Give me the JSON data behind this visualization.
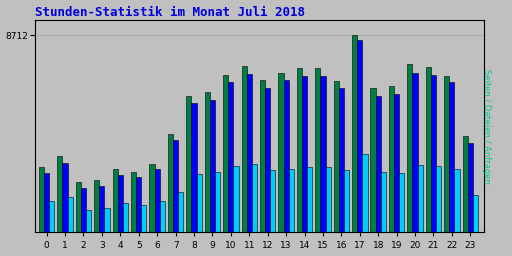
{
  "title": "Stunden-Statistik im Monat Juli 2018",
  "title_color": "#0000DD",
  "title_fontsize": 9,
  "ylabel_right": "Seiten / Dateien / Anfragen",
  "ytick_label": "8712",
  "background_color": "#C0C0C0",
  "plot_bg_color": "#C0C0C0",
  "bar_width": 0.28,
  "hours": [
    0,
    1,
    2,
    3,
    4,
    5,
    6,
    7,
    8,
    9,
    10,
    11,
    12,
    13,
    14,
    15,
    16,
    17,
    18,
    19,
    20,
    21,
    22,
    23
  ],
  "seiten": [
    330,
    390,
    255,
    265,
    320,
    305,
    345,
    500,
    695,
    715,
    800,
    845,
    775,
    810,
    835,
    835,
    770,
    1000,
    735,
    745,
    855,
    840,
    795,
    490
  ],
  "dateien": [
    300,
    355,
    225,
    238,
    292,
    280,
    320,
    470,
    655,
    672,
    762,
    805,
    735,
    773,
    795,
    795,
    732,
    975,
    692,
    702,
    812,
    800,
    762,
    455
  ],
  "anfragen": [
    158,
    178,
    112,
    122,
    148,
    138,
    158,
    205,
    295,
    305,
    338,
    345,
    315,
    320,
    330,
    330,
    315,
    400,
    305,
    300,
    340,
    335,
    320,
    190
  ],
  "color_seiten": "#008040",
  "color_dateien": "#0000FF",
  "color_anfragen": "#00CCFF",
  "grid_color": "#AAAAAA",
  "border_color": "#000000",
  "ylabel_right_color": "#00CC99"
}
